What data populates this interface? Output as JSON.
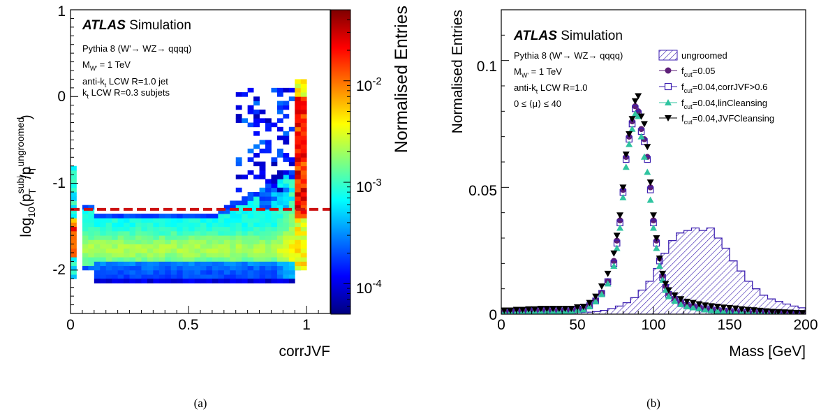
{
  "captions": {
    "a": "(a)",
    "b": "(b)"
  },
  "chart_data": [
    {
      "type": "heatmap",
      "panel": "a",
      "experiment_label": "ATLAS",
      "experiment_suffix": "Simulation",
      "legend_lines": [
        "Pythia 8 (W'→ WZ→ qqqq)",
        "M_{W'} = 1 TeV",
        "anti-k_{t} LCW R=1.0 jet",
        "k_{t} LCW R=0.3 subjets"
      ],
      "xlabel": "corrJVF",
      "ylabel": "log10(p_T^subj / p_T^ungroomed)",
      "zlabel": "Normalised Entries",
      "xlim": [
        0,
        1.1
      ],
      "ylim": [
        -2.5,
        1
      ],
      "zlim_log10": [
        -4.3,
        -1.3
      ],
      "xticks": [
        "0",
        "0.5",
        "1"
      ],
      "yticks": [
        "1",
        "0",
        "-1",
        "-2"
      ],
      "zticks": [
        "10^{-2}",
        "10^{-3}",
        "10^{-4}"
      ],
      "cut_line_y": -1.3,
      "cut_line_color": "#cc1111",
      "colormap": [
        "#00007f",
        "#0000ff",
        "#007fff",
        "#00ffff",
        "#7fff7f",
        "#ffff00",
        "#ff7f00",
        "#ff0000",
        "#7f0000"
      ]
    },
    {
      "type": "line",
      "panel": "b",
      "experiment_label": "ATLAS",
      "experiment_suffix": "Simulation",
      "legend_lines": [
        "Pythia 8 (W'→ WZ→ qqqq)",
        "M_{W'} = 1 TeV",
        "anti-k_{t} LCW R=1.0",
        "0 ≤ ⟨μ⟩ ≤ 40"
      ],
      "xlabel": "Mass [GeV]",
      "ylabel": "Normalised Entries",
      "xlim": [
        0,
        200
      ],
      "ylim": [
        0,
        0.12
      ],
      "xticks": [
        "0",
        "50",
        "100",
        "150",
        "200"
      ],
      "yticks": [
        "0",
        "0.05",
        "0.1"
      ],
      "legend_position": "top-right",
      "series": [
        {
          "name": "ungroomed",
          "style": "hatched-histogram",
          "color": "#3c1fb0",
          "x": [
            0,
            5,
            10,
            15,
            20,
            25,
            30,
            35,
            40,
            45,
            50,
            55,
            60,
            65,
            70,
            75,
            80,
            85,
            90,
            95,
            100,
            105,
            110,
            115,
            120,
            125,
            130,
            135,
            140,
            145,
            150,
            155,
            160,
            165,
            170,
            175,
            180,
            185,
            190,
            195
          ],
          "y": [
            0.0005,
            0.0005,
            0.0005,
            0.0005,
            0.0005,
            0.0005,
            0.0005,
            0.0006,
            0.0006,
            0.0006,
            0.0007,
            0.0008,
            0.001,
            0.0015,
            0.0022,
            0.0032,
            0.0045,
            0.0065,
            0.0095,
            0.013,
            0.018,
            0.024,
            0.029,
            0.032,
            0.033,
            0.034,
            0.033,
            0.034,
            0.03,
            0.026,
            0.021,
            0.017,
            0.013,
            0.01,
            0.0075,
            0.006,
            0.005,
            0.004,
            0.0032,
            0.0025
          ]
        },
        {
          "name": "f_{cut}=0.05",
          "marker": "circle",
          "color": "#5e1f78",
          "x": [
            2,
            6,
            10,
            14,
            18,
            22,
            26,
            30,
            34,
            38,
            42,
            46,
            50,
            54,
            58,
            62,
            66,
            70,
            74,
            76,
            78,
            80,
            82,
            84,
            86,
            88,
            90,
            92,
            94,
            96,
            98,
            100,
            102,
            104,
            106,
            108,
            110,
            114,
            118,
            122,
            126,
            130,
            134,
            138,
            142,
            146,
            150,
            154,
            158,
            162,
            166,
            170,
            174,
            178,
            182,
            186,
            190,
            194,
            198
          ],
          "y": [
            0.001,
            0.001,
            0.0012,
            0.0012,
            0.0015,
            0.0015,
            0.0015,
            0.0015,
            0.0015,
            0.0014,
            0.0014,
            0.0014,
            0.002,
            0.002,
            0.0035,
            0.0055,
            0.0085,
            0.013,
            0.021,
            0.029,
            0.037,
            0.049,
            0.062,
            0.07,
            0.076,
            0.082,
            0.08,
            0.073,
            0.069,
            0.062,
            0.05,
            0.037,
            0.029,
            0.022,
            0.015,
            0.011,
            0.008,
            0.006,
            0.0045,
            0.0035,
            0.003,
            0.0025,
            0.002,
            0.0018,
            0.0015,
            0.0012,
            0.001,
            0.0009,
            0.0008,
            0.0007,
            0.0006,
            0.0005,
            0.0005,
            0.0004,
            0.0004,
            0.0003,
            0.0003,
            0.0002,
            0.0002
          ]
        },
        {
          "name": "f_{cut}=0.04,corrJVF>0.6",
          "marker": "open-square",
          "color": "#3c1fb0",
          "x": [
            2,
            6,
            10,
            14,
            18,
            22,
            26,
            30,
            34,
            38,
            42,
            46,
            50,
            54,
            58,
            62,
            66,
            70,
            74,
            76,
            78,
            80,
            82,
            84,
            86,
            88,
            90,
            92,
            94,
            96,
            98,
            100,
            102,
            104,
            106,
            108,
            110,
            114,
            118,
            122,
            126,
            130,
            134,
            138,
            142,
            146,
            150,
            154,
            158,
            162,
            166,
            170,
            174,
            178,
            182,
            186,
            190,
            194,
            198
          ],
          "y": [
            0.001,
            0.001,
            0.0012,
            0.0012,
            0.0014,
            0.0014,
            0.0014,
            0.0014,
            0.0014,
            0.0013,
            0.0013,
            0.0013,
            0.0018,
            0.002,
            0.0033,
            0.0052,
            0.0082,
            0.0128,
            0.02,
            0.028,
            0.036,
            0.048,
            0.061,
            0.069,
            0.075,
            0.081,
            0.079,
            0.072,
            0.068,
            0.061,
            0.049,
            0.036,
            0.028,
            0.021,
            0.0145,
            0.0105,
            0.0078,
            0.0058,
            0.0044,
            0.0034,
            0.0029,
            0.0024,
            0.002,
            0.0017,
            0.0014,
            0.0012,
            0.001,
            0.0009,
            0.0008,
            0.0007,
            0.0006,
            0.0005,
            0.0005,
            0.0004,
            0.0004,
            0.0003,
            0.0003,
            0.0002,
            0.0002
          ]
        },
        {
          "name": "f_{cut}=0.04,linCleansing",
          "marker": "triangle-up",
          "color": "#2fc4a0",
          "x": [
            2,
            6,
            10,
            14,
            18,
            22,
            26,
            30,
            34,
            38,
            42,
            46,
            50,
            54,
            58,
            62,
            66,
            70,
            74,
            76,
            78,
            80,
            82,
            84,
            86,
            88,
            90,
            92,
            94,
            96,
            98,
            100,
            102,
            104,
            106,
            108,
            110,
            114,
            118,
            122,
            126,
            130,
            134,
            138,
            142,
            146,
            150,
            154,
            158,
            162,
            166,
            170,
            174,
            178,
            182,
            186,
            190,
            194,
            198
          ],
          "y": [
            0.0008,
            0.0008,
            0.0009,
            0.0009,
            0.001,
            0.001,
            0.001,
            0.0011,
            0.0011,
            0.0011,
            0.0012,
            0.0012,
            0.0016,
            0.0018,
            0.003,
            0.005,
            0.0078,
            0.012,
            0.019,
            0.026,
            0.034,
            0.046,
            0.058,
            0.067,
            0.073,
            0.079,
            0.078,
            0.07,
            0.062,
            0.056,
            0.045,
            0.034,
            0.026,
            0.019,
            0.0135,
            0.0095,
            0.007,
            0.0052,
            0.0039,
            0.003,
            0.0026,
            0.0022,
            0.0018,
            0.0015,
            0.0013,
            0.0011,
            0.0009,
            0.0008,
            0.0007,
            0.0006,
            0.0006,
            0.0005,
            0.0005,
            0.0004,
            0.0004,
            0.0003,
            0.0003,
            0.0002,
            0.0002
          ]
        },
        {
          "name": "f_{cut}=0.04,JVFCleansing",
          "marker": "triangle-down",
          "color": "#000000",
          "x": [
            2,
            6,
            10,
            14,
            18,
            22,
            26,
            30,
            34,
            38,
            42,
            46,
            50,
            54,
            58,
            62,
            66,
            70,
            74,
            76,
            78,
            80,
            82,
            84,
            86,
            88,
            90,
            92,
            94,
            96,
            98,
            100,
            102,
            104,
            106,
            108,
            110,
            114,
            118,
            122,
            126,
            130,
            134,
            138,
            142,
            146,
            150,
            154,
            158,
            162,
            166,
            170,
            174,
            178,
            182,
            186,
            190,
            194,
            198
          ],
          "y": [
            0.0015,
            0.0015,
            0.0018,
            0.0018,
            0.002,
            0.002,
            0.0022,
            0.0022,
            0.0022,
            0.0022,
            0.0022,
            0.0022,
            0.0028,
            0.003,
            0.0045,
            0.007,
            0.011,
            0.016,
            0.024,
            0.031,
            0.039,
            0.05,
            0.063,
            0.071,
            0.077,
            0.084,
            0.086,
            0.078,
            0.075,
            0.066,
            0.052,
            0.039,
            0.03,
            0.022,
            0.016,
            0.012,
            0.0095,
            0.0075,
            0.006,
            0.005,
            0.0045,
            0.004,
            0.0035,
            0.0032,
            0.003,
            0.0027,
            0.0025,
            0.0023,
            0.002,
            0.0018,
            0.0016,
            0.0014,
            0.0012,
            0.001,
            0.0009,
            0.0008,
            0.0007,
            0.0006,
            0.0005
          ]
        }
      ]
    }
  ]
}
